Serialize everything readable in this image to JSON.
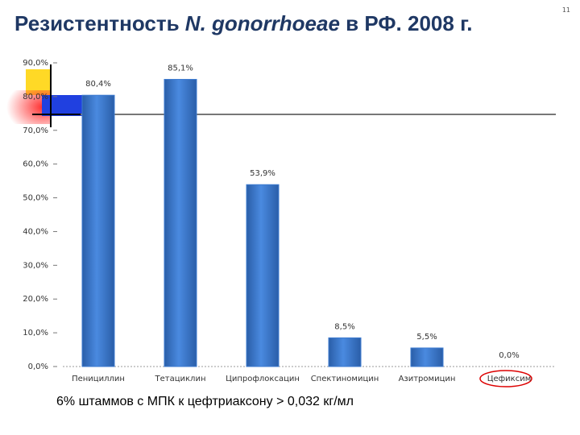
{
  "page_number": "11",
  "chart_data": {
    "type": "bar",
    "title": {
      "before": "Резистентность ",
      "italic": "N. gonorrhoeae",
      "after": " в РФ. 2008 г."
    },
    "categories": [
      "Пенициллин",
      "Тетациклин",
      "Ципрофлоксацин",
      "Спектиномицин",
      "Азитромицин",
      "Цефиксим"
    ],
    "values": [
      80.4,
      85.1,
      53.9,
      8.5,
      5.5,
      0.0
    ],
    "value_labels": [
      "80,4%",
      "85,1%",
      "53,9%",
      "8,5%",
      "5,5%",
      "0,0%"
    ],
    "color": "#3d7bd0",
    "ylim": [
      0,
      90
    ],
    "yticks": [
      {
        "value": 0,
        "label": "0,0%"
      },
      {
        "value": 10,
        "label": "10,0%"
      },
      {
        "value": 20,
        "label": "20,0%"
      },
      {
        "value": 30,
        "label": "30,0%"
      },
      {
        "value": 40,
        "label": "40,0%"
      },
      {
        "value": 50,
        "label": "50,0%"
      },
      {
        "value": 60,
        "label": "60,0%"
      },
      {
        "value": 70,
        "label": "70,0%"
      },
      {
        "value": 80,
        "label": "80,0%"
      },
      {
        "value": 90,
        "label": "90,0%"
      }
    ],
    "grid": false,
    "annotation": "6% штаммов с МПК к цефтриаксону > 0,032 кг/мл"
  }
}
